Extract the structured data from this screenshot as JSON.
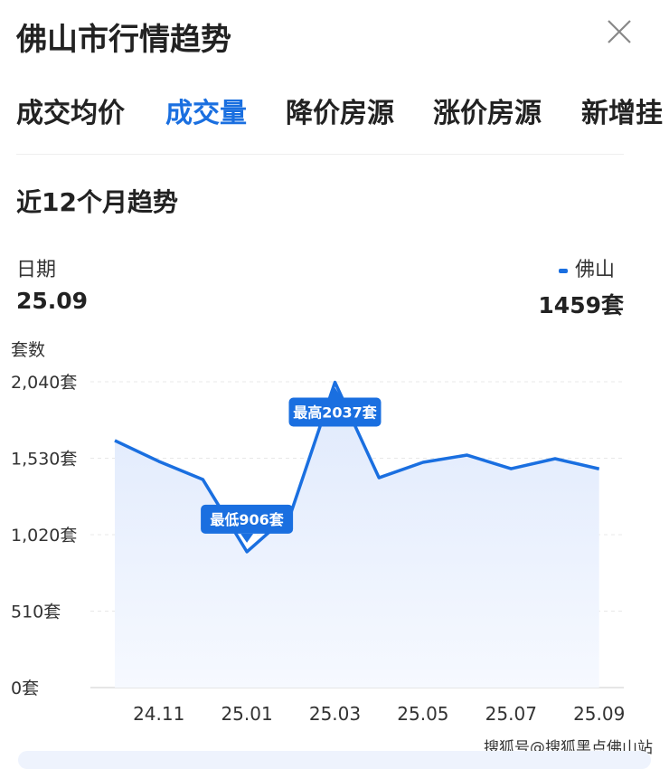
{
  "header": {
    "title": "佛山市行情趋势",
    "close_icon": "close-icon"
  },
  "tabs": [
    {
      "label": "成交均价",
      "active": false
    },
    {
      "label": "成交量",
      "active": true
    },
    {
      "label": "降价房源",
      "active": false
    },
    {
      "label": "涨价房源",
      "active": false
    },
    {
      "label": "新增挂",
      "active": false
    }
  ],
  "section_title": "近12个月趋势",
  "readout": {
    "date_label": "日期",
    "date_value": "25.09",
    "series_label": "佛山",
    "series_value": "1459套"
  },
  "watermark": "搜狐号@搜狐黑点佛山站",
  "colors": {
    "accent": "#1a6fe0",
    "fill": "#e8f0fd"
  },
  "chart_data": {
    "type": "area",
    "ylabel": "套数",
    "ylim": [
      0,
      2040
    ],
    "yticks": [
      "0套",
      "510套",
      "1,020套",
      "1,530套",
      "2,040套"
    ],
    "ytick_values": [
      0,
      510,
      1020,
      1530,
      2040
    ],
    "x": [
      "24.10",
      "24.11",
      "24.12",
      "25.01",
      "25.02",
      "25.03",
      "25.04",
      "25.05",
      "25.06",
      "25.07",
      "25.08",
      "25.09"
    ],
    "xtick_labels": [
      "24.11",
      "25.01",
      "25.03",
      "25.05",
      "25.07",
      "25.09"
    ],
    "series": [
      {
        "name": "佛山",
        "values": [
          1648,
          1509,
          1388,
          906,
          1165,
          2037,
          1400,
          1503,
          1551,
          1460,
          1527,
          1459
        ]
      }
    ],
    "grid": true,
    "annotations": [
      {
        "x": "25.01",
        "text": "最低906套"
      },
      {
        "x": "25.03",
        "text": "最高2037套"
      }
    ]
  }
}
